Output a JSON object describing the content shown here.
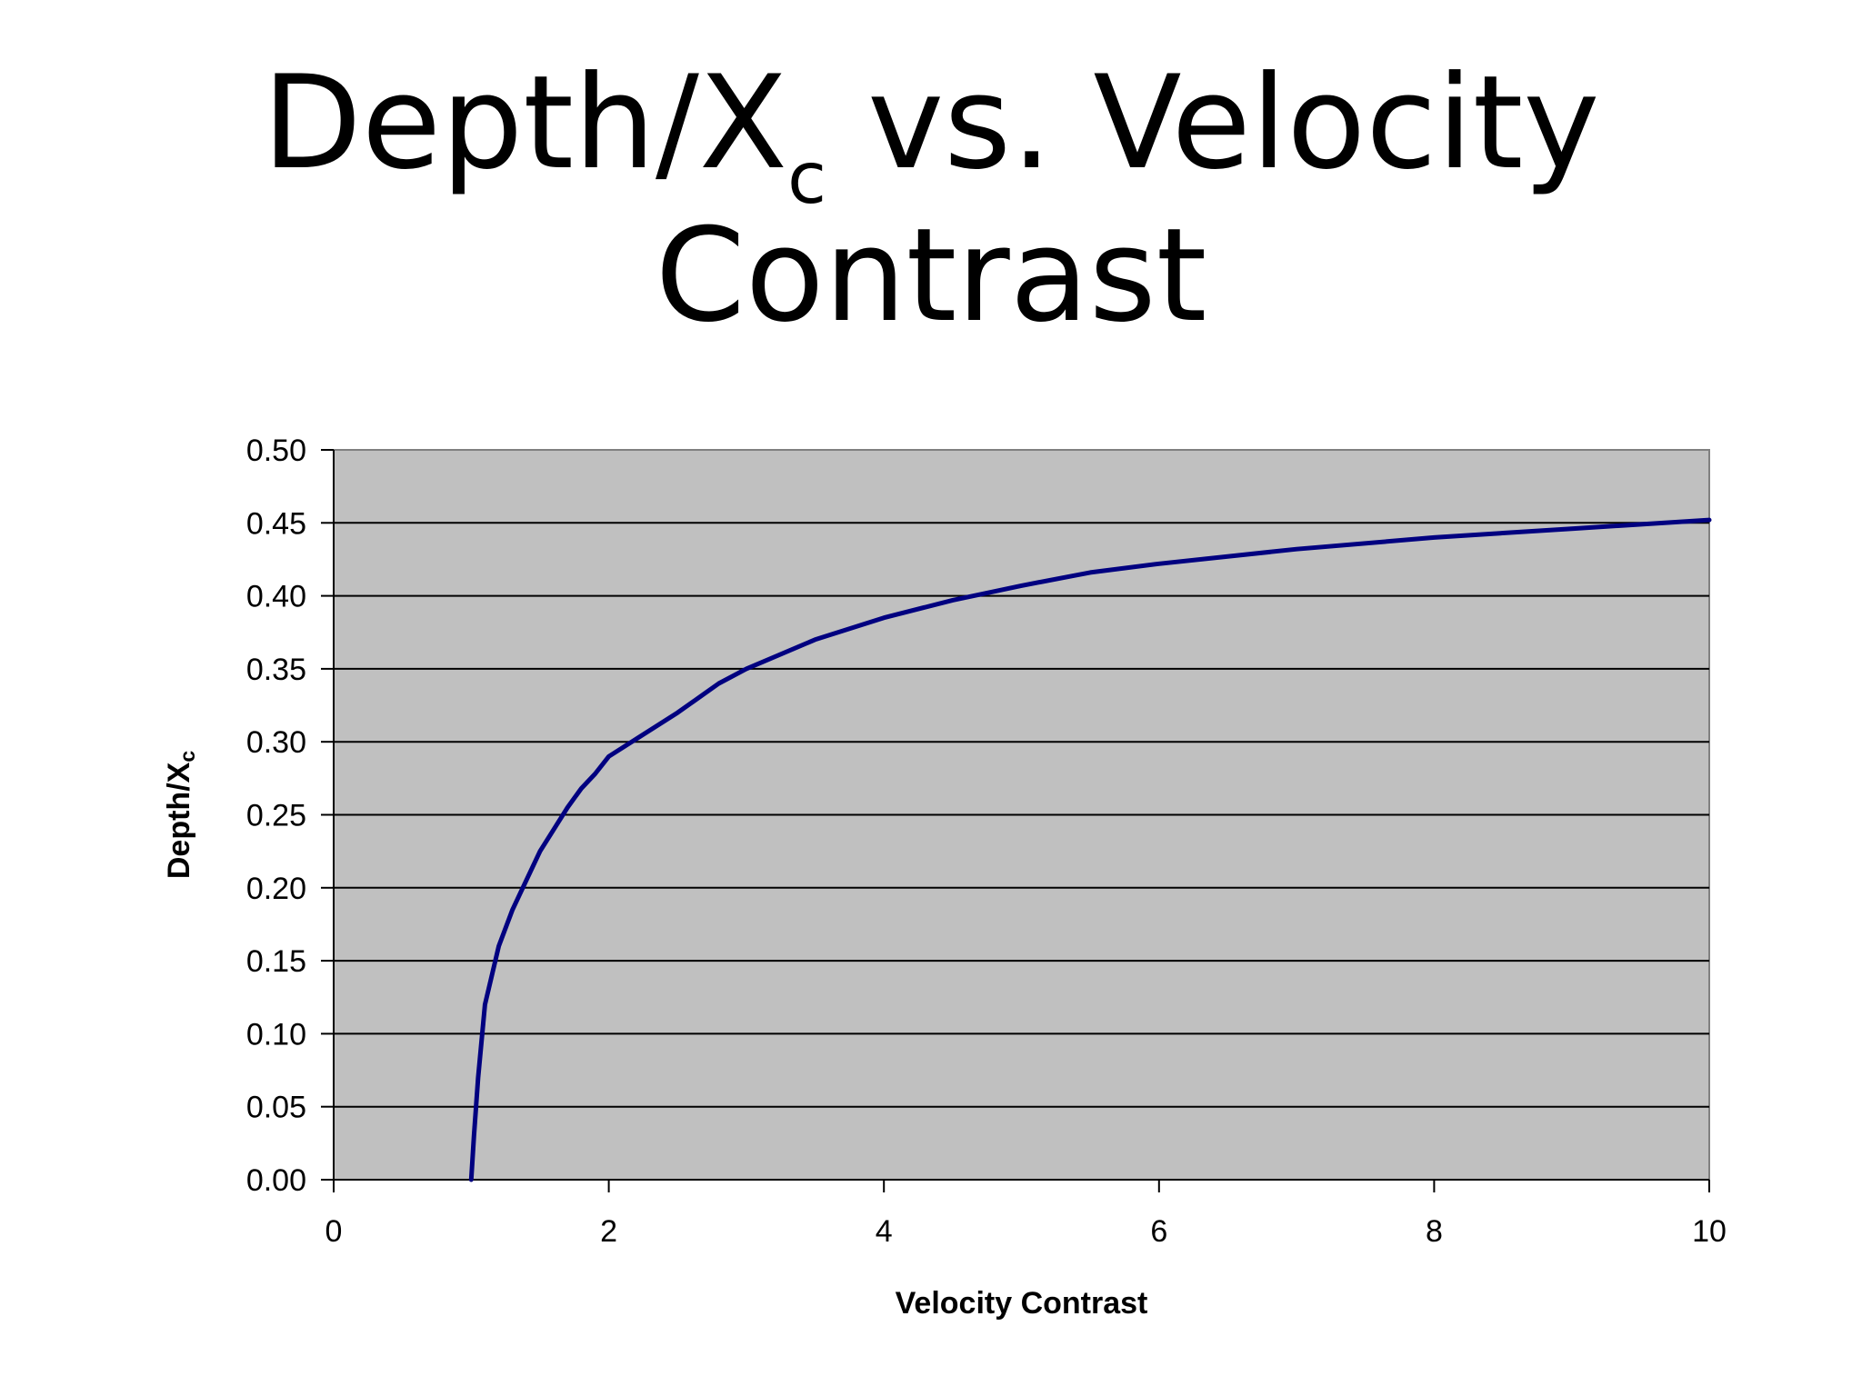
{
  "slide": {
    "title_main": "Depth/X",
    "title_sub": "c",
    "title_rest": " vs. Velocity",
    "title_line2": "Contrast"
  },
  "chart_data": {
    "type": "line",
    "title": "",
    "xlabel": "Velocity Contrast",
    "ylabel_main": "Depth/X",
    "ylabel_sub": "c",
    "xlim": [
      0,
      10
    ],
    "ylim": [
      0,
      0.5
    ],
    "x_ticks": [
      "0",
      "2",
      "4",
      "6",
      "8",
      "10"
    ],
    "y_ticks": [
      "0.00",
      "0.05",
      "0.10",
      "0.15",
      "0.20",
      "0.25",
      "0.30",
      "0.35",
      "0.40",
      "0.45",
      "0.50"
    ],
    "grid": "horizontal",
    "legend": "none",
    "colors": {
      "plot_background": "#c0c0c0",
      "line": "#000080",
      "gridline": "#000000"
    },
    "series": [
      {
        "x": [
          1.0,
          1.02,
          1.05,
          1.1,
          1.15,
          1.2,
          1.3,
          1.4,
          1.5,
          1.6,
          1.7,
          1.8,
          1.9,
          2.0,
          2.2,
          2.5,
          2.8,
          3.0,
          3.5,
          4.0,
          4.5,
          5.0,
          5.5,
          6.0,
          7.0,
          8.0,
          9.0,
          10.0
        ],
        "y": [
          0.0,
          0.03,
          0.07,
          0.12,
          0.14,
          0.16,
          0.185,
          0.205,
          0.225,
          0.24,
          0.255,
          0.268,
          0.278,
          0.29,
          0.302,
          0.32,
          0.34,
          0.35,
          0.37,
          0.385,
          0.397,
          0.407,
          0.416,
          0.422,
          0.432,
          0.44,
          0.446,
          0.452
        ]
      }
    ]
  }
}
